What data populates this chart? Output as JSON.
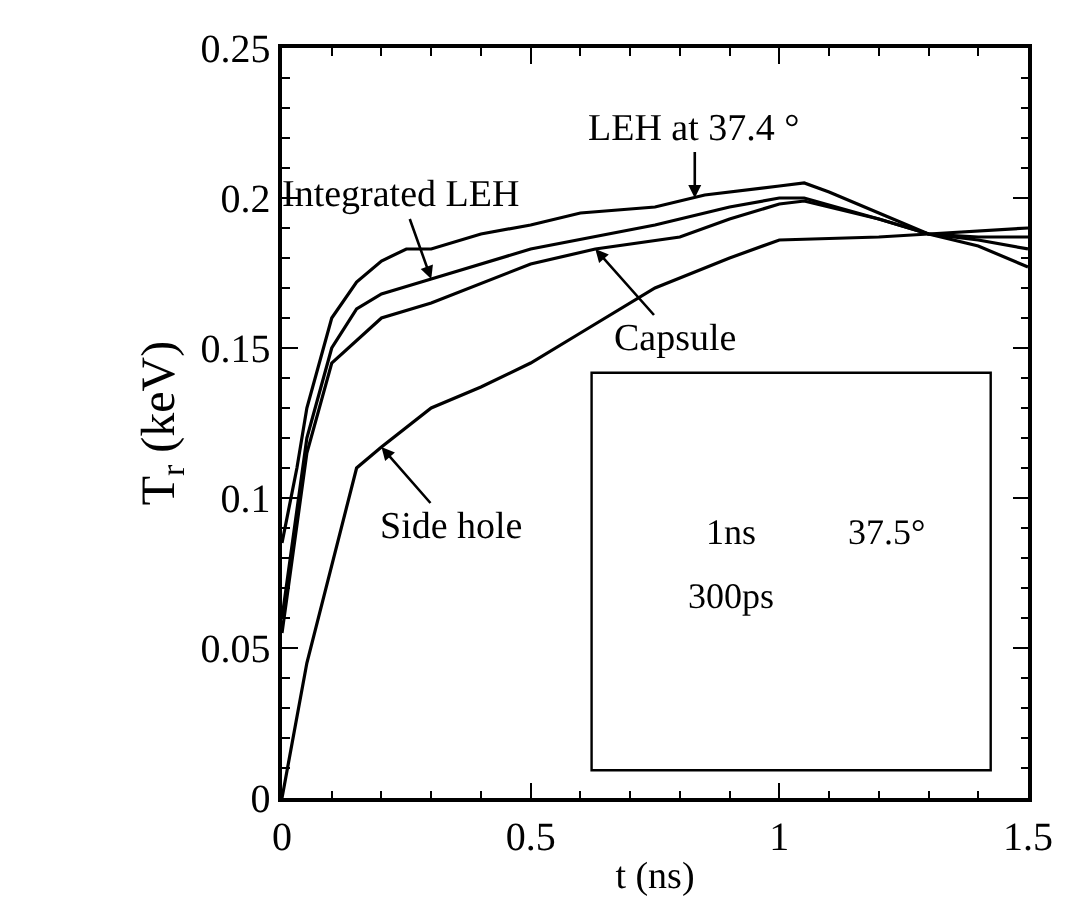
{
  "chart_data": [
    {
      "type": "line",
      "xlabel": "t (ns)",
      "ylabel": "T$_{r}$ (keV)",
      "xlim": [
        0,
        1.5
      ],
      "xticks": [
        0,
        0.5,
        1,
        1.5
      ],
      "ylim": [
        0,
        0.25
      ],
      "yticks": [
        0,
        0.05,
        0.1,
        0.15,
        0.2,
        0.25
      ],
      "marker": "none",
      "line_style": "solid",
      "series": [
        {
          "color": "#000000",
          "x": [
            0,
            0.03,
            0.05,
            0.1,
            0.15,
            0.2,
            0.25,
            0.3,
            0.4,
            0.5,
            0.6,
            0.75,
            0.85,
            1.0,
            1.05,
            1.1,
            1.2,
            1.3,
            1.4,
            1.5
          ],
          "values": [
            0.085,
            0.11,
            0.13,
            0.16,
            0.172,
            0.179,
            0.183,
            0.183,
            0.188,
            0.191,
            0.195,
            0.197,
            0.201,
            0.204,
            0.205,
            0.202,
            0.195,
            0.188,
            0.184,
            0.177
          ]
        },
        {
          "color": "#000000",
          "x": [
            0,
            0.05,
            0.1,
            0.15,
            0.2,
            0.3,
            0.5,
            0.75,
            0.9,
            1.0,
            1.05,
            1.2,
            1.3,
            1.4,
            1.5
          ],
          "values": [
            0.06,
            0.12,
            0.15,
            0.163,
            0.168,
            0.173,
            0.183,
            0.191,
            0.197,
            0.2,
            0.2,
            0.193,
            0.188,
            0.186,
            0.183
          ]
        },
        {
          "color": "#000000",
          "x": [
            0,
            0.05,
            0.1,
            0.2,
            0.3,
            0.5,
            0.63,
            0.8,
            0.9,
            1.0,
            1.05,
            1.2,
            1.3,
            1.4,
            1.5
          ],
          "values": [
            0.055,
            0.115,
            0.145,
            0.16,
            0.165,
            0.178,
            0.183,
            0.187,
            0.193,
            0.198,
            0.199,
            0.193,
            0.188,
            0.187,
            0.187
          ]
        },
        {
          "color": "#000000",
          "x": [
            0,
            0.05,
            0.15,
            0.2,
            0.3,
            0.4,
            0.5,
            0.6,
            0.75,
            0.9,
            1.0,
            1.2,
            1.3,
            1.5
          ],
          "values": [
            0,
            0.045,
            0.11,
            0.117,
            0.13,
            0.137,
            0.145,
            0.155,
            0.17,
            0.18,
            0.186,
            0.187,
            0.188,
            0.19
          ]
        }
      ],
      "annotations": [
        {
          "text": "LEH at 37.4 °",
          "x": 0.83,
          "y": 0.2
        },
        {
          "text": "Integrated LEH",
          "x": 0.3,
          "y": 0.173
        },
        {
          "text": "Capsule",
          "x": 0.63,
          "y": 0.183
        },
        {
          "text": "Side hole",
          "x": 0.2,
          "y": 0.117
        }
      ]
    },
    {
      "type": "other",
      "annotations": [
        "1ns",
        "300ps",
        "37.5°"
      ]
    }
  ]
}
